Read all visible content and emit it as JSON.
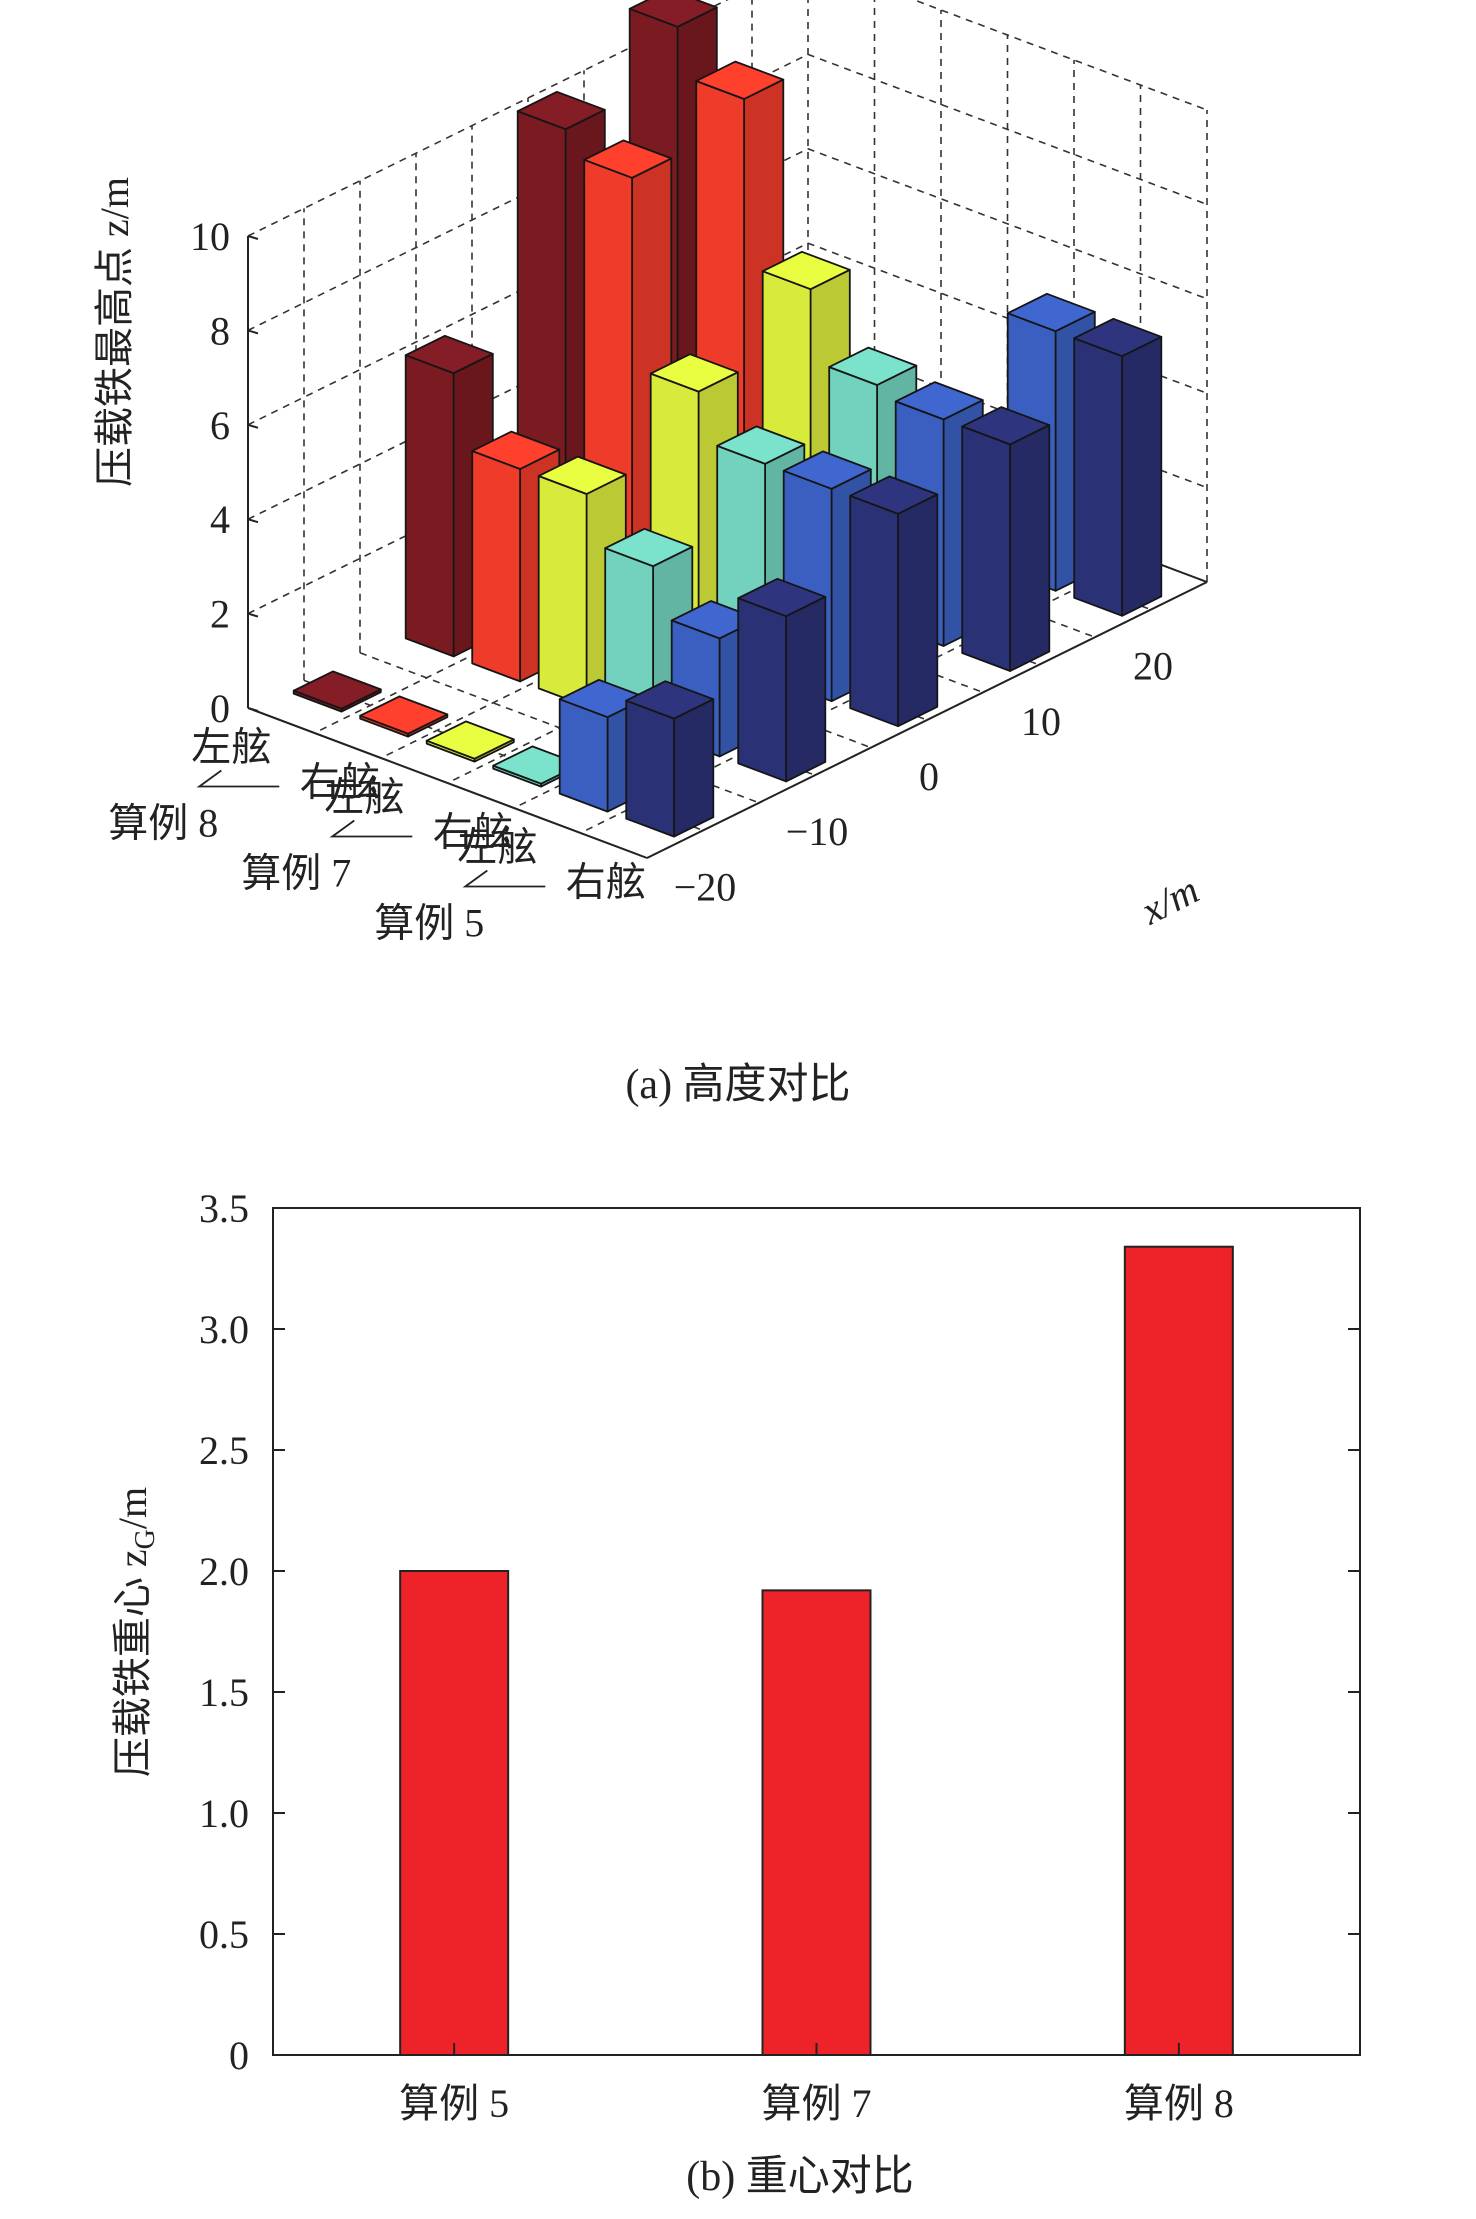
{
  "chart_data": [
    {
      "type": "bar3d",
      "caption": "(a) 高度对比",
      "zlabel": "压载铁最高点 z/m",
      "xlabel": "x/m",
      "zticks": [
        "0",
        "2",
        "4",
        "6",
        "8",
        "10"
      ],
      "zlim": [
        0,
        10
      ],
      "xticks": [
        "−20",
        "−10",
        "0",
        "10",
        "20"
      ],
      "xvalues": [
        -20,
        -10,
        0,
        10,
        20
      ],
      "groups": [
        "算例 8",
        "算例 7",
        "算例 5"
      ],
      "sides": [
        "左舷",
        "右舷"
      ],
      "series": [
        {
          "group": "算例 8",
          "side": "左舷",
          "color": "#7a1b22",
          "values": [
            0,
            6.0,
            10.0,
            11.0,
            0
          ]
        },
        {
          "group": "算例 8",
          "side": "右舷",
          "color": "#ee3b2a",
          "values": [
            0,
            4.5,
            9.5,
            10.0,
            0
          ]
        },
        {
          "group": "算例 7",
          "side": "左舷",
          "color": "#d8ea3c",
          "values": [
            0,
            4.5,
            5.5,
            6.5,
            0
          ]
        },
        {
          "group": "算例 7",
          "side": "右舷",
          "color": "#72d2bd",
          "values": [
            0,
            3.5,
            4.5,
            5.0,
            0
          ]
        },
        {
          "group": "算例 5",
          "side": "左舷",
          "color": "#3a5fc0",
          "values": [
            2.0,
            2.5,
            4.5,
            4.8,
            5.5
          ]
        },
        {
          "group": "算例 5",
          "side": "右舷",
          "color": "#2b3175",
          "values": [
            2.5,
            3.5,
            4.5,
            4.8,
            5.5
          ]
        }
      ]
    },
    {
      "type": "bar",
      "caption": "(b) 重心对比",
      "ylabel": "压载铁重心 z",
      "ylabel_sub": "G",
      "ylabel_unit": "/m",
      "categories": [
        "算例 5",
        "算例 7",
        "算例 8"
      ],
      "values": [
        2.0,
        1.92,
        3.34
      ],
      "yticks": [
        "0",
        "0.5",
        "1.0",
        "1.5",
        "2.0",
        "2.5",
        "3.0",
        "3.5"
      ],
      "ylim": [
        0,
        3.5
      ],
      "color": "#ee2229"
    }
  ]
}
